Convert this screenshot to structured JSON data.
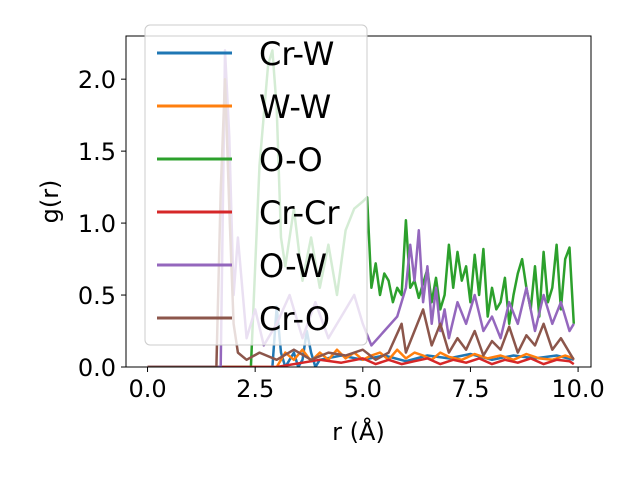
{
  "chart_data": {
    "type": "line",
    "xlabel": "r (Å)",
    "ylabel": "g(r)",
    "xlim": [
      -0.5,
      10.3
    ],
    "ylim": [
      0.0,
      2.3
    ],
    "xticks": [
      0.0,
      2.5,
      5.0,
      7.5,
      10.0
    ],
    "xtick_labels": [
      "0.0",
      "2.5",
      "5.0",
      "7.5",
      "10.0"
    ],
    "yticks": [
      0.0,
      0.5,
      1.0,
      1.5,
      2.0
    ],
    "ytick_labels": [
      "0.0",
      "0.5",
      "1.0",
      "1.5",
      "2.0"
    ],
    "grid": false,
    "legend_position": "upper-left",
    "series": [
      {
        "name": "Cr-W",
        "color": "#1f77b4",
        "x": [
          0.0,
          1.0,
          2.0,
          2.9,
          3.0,
          3.1,
          3.2,
          3.3,
          3.4,
          3.5,
          3.6,
          3.7,
          3.8,
          3.9,
          4.0,
          4.5,
          5.0,
          5.5,
          6.0,
          6.5,
          7.0,
          7.5,
          8.0,
          8.5,
          9.0,
          9.5,
          9.9
        ],
        "y": [
          0.0,
          0.0,
          0.0,
          0.0,
          0.42,
          0.1,
          0.0,
          0.05,
          0.1,
          0.0,
          0.05,
          0.25,
          0.1,
          0.0,
          0.05,
          0.08,
          0.05,
          0.08,
          0.04,
          0.08,
          0.06,
          0.09,
          0.05,
          0.08,
          0.06,
          0.08,
          0.05
        ]
      },
      {
        "name": "W-W",
        "color": "#ff7f0e",
        "x": [
          0.0,
          1.0,
          2.0,
          3.0,
          3.2,
          3.4,
          3.6,
          3.8,
          4.0,
          4.2,
          4.4,
          4.6,
          4.8,
          5.0,
          5.2,
          5.4,
          5.6,
          5.8,
          6.0,
          6.2,
          6.4,
          6.6,
          6.8,
          7.0,
          7.3,
          7.6,
          7.9,
          8.2,
          8.5,
          8.8,
          9.1,
          9.4,
          9.7,
          9.9
        ],
        "y": [
          0.0,
          0.0,
          0.0,
          0.0,
          0.1,
          0.05,
          0.12,
          0.04,
          0.1,
          0.05,
          0.12,
          0.06,
          0.1,
          0.05,
          0.08,
          0.1,
          0.05,
          0.12,
          0.06,
          0.1,
          0.08,
          0.05,
          0.1,
          0.07,
          0.05,
          0.09,
          0.06,
          0.08,
          0.05,
          0.09,
          0.06,
          0.05,
          0.08,
          0.06
        ]
      },
      {
        "name": "O-O",
        "color": "#2ca02c",
        "x": [
          0.0,
          1.0,
          2.0,
          2.4,
          2.6,
          2.8,
          2.9,
          3.0,
          3.1,
          3.2,
          3.4,
          3.6,
          3.8,
          4.0,
          4.2,
          4.4,
          4.6,
          4.8,
          5.0,
          5.1,
          5.2,
          5.3,
          5.4,
          5.5,
          5.6,
          5.7,
          5.8,
          5.9,
          6.0,
          6.1,
          6.2,
          6.3,
          6.4,
          6.5,
          6.6,
          6.7,
          6.8,
          6.9,
          7.0,
          7.1,
          7.2,
          7.3,
          7.4,
          7.5,
          7.6,
          7.7,
          7.8,
          7.9,
          8.0,
          8.1,
          8.2,
          8.3,
          8.4,
          8.5,
          8.6,
          8.7,
          8.8,
          8.9,
          9.0,
          9.1,
          9.2,
          9.3,
          9.4,
          9.5,
          9.6,
          9.7,
          9.8,
          9.9
        ],
        "y": [
          0.0,
          0.0,
          0.0,
          0.0,
          1.4,
          2.1,
          2.2,
          1.8,
          0.9,
          0.7,
          1.1,
          0.6,
          0.9,
          0.55,
          0.85,
          0.5,
          0.95,
          1.1,
          1.15,
          1.18,
          0.55,
          0.72,
          0.5,
          0.65,
          0.6,
          0.45,
          0.55,
          0.5,
          1.02,
          0.55,
          0.6,
          0.48,
          0.58,
          0.68,
          0.45,
          0.62,
          0.4,
          0.5,
          0.85,
          0.55,
          0.8,
          0.6,
          0.7,
          0.45,
          0.78,
          0.5,
          0.82,
          0.35,
          0.55,
          0.4,
          0.45,
          0.62,
          0.3,
          0.5,
          0.65,
          0.75,
          0.55,
          0.4,
          0.7,
          0.35,
          0.8,
          0.45,
          0.55,
          0.85,
          0.4,
          0.75,
          0.83,
          0.3
        ]
      },
      {
        "name": "Cr-Cr",
        "color": "#d62728",
        "x": [
          0.0,
          1.0,
          2.0,
          3.0,
          4.0,
          4.5,
          5.0,
          5.3,
          5.6,
          5.9,
          6.2,
          6.5,
          6.8,
          7.1,
          7.4,
          7.7,
          8.0,
          8.3,
          8.6,
          8.9,
          9.2,
          9.5,
          9.8,
          9.9
        ],
        "y": [
          0.0,
          0.0,
          0.0,
          0.0,
          0.05,
          0.03,
          0.06,
          0.02,
          0.05,
          0.02,
          0.04,
          0.06,
          0.02,
          0.05,
          0.03,
          0.06,
          0.02,
          0.05,
          0.03,
          0.06,
          0.02,
          0.05,
          0.04,
          0.02
        ]
      },
      {
        "name": "O-W",
        "color": "#9467bd",
        "x": [
          0.0,
          1.0,
          1.7,
          1.8,
          1.9,
          2.0,
          2.1,
          2.3,
          2.5,
          2.7,
          3.0,
          3.3,
          3.6,
          3.9,
          4.2,
          4.5,
          4.8,
          5.0,
          5.2,
          5.5,
          5.8,
          6.0,
          6.1,
          6.2,
          6.3,
          6.4,
          6.5,
          6.6,
          6.7,
          6.8,
          6.9,
          7.0,
          7.2,
          7.4,
          7.6,
          7.8,
          8.0,
          8.2,
          8.4,
          8.6,
          8.8,
          9.0,
          9.2,
          9.4,
          9.6,
          9.8,
          9.9
        ],
        "y": [
          0.0,
          0.0,
          0.0,
          2.2,
          1.6,
          0.5,
          0.9,
          0.2,
          0.4,
          0.15,
          0.3,
          0.5,
          0.2,
          0.45,
          0.2,
          0.35,
          0.5,
          0.3,
          0.15,
          0.25,
          0.35,
          0.55,
          0.85,
          0.6,
          0.95,
          0.45,
          0.7,
          0.3,
          0.55,
          0.25,
          0.4,
          0.2,
          0.45,
          0.3,
          0.5,
          0.25,
          0.35,
          0.2,
          0.45,
          0.3,
          0.55,
          0.25,
          0.5,
          0.3,
          0.45,
          0.25,
          0.3
        ]
      },
      {
        "name": "Cr-O",
        "color": "#8c564b",
        "x": [
          0.0,
          1.0,
          1.6,
          1.7,
          1.8,
          1.9,
          2.0,
          2.1,
          2.3,
          2.6,
          3.0,
          3.4,
          3.8,
          4.2,
          4.6,
          5.0,
          5.3,
          5.6,
          5.9,
          6.0,
          6.2,
          6.4,
          6.6,
          6.8,
          7.0,
          7.2,
          7.4,
          7.6,
          7.8,
          8.0,
          8.2,
          8.4,
          8.6,
          8.8,
          9.0,
          9.2,
          9.4,
          9.6,
          9.8,
          9.9
        ],
        "y": [
          0.0,
          0.0,
          0.0,
          1.22,
          2.0,
          1.1,
          0.3,
          0.1,
          0.05,
          0.1,
          0.05,
          0.12,
          0.05,
          0.1,
          0.08,
          0.12,
          0.05,
          0.1,
          0.3,
          0.1,
          0.25,
          0.4,
          0.15,
          0.3,
          0.1,
          0.2,
          0.12,
          0.25,
          0.08,
          0.18,
          0.12,
          0.28,
          0.1,
          0.22,
          0.15,
          0.3,
          0.12,
          0.2,
          0.1,
          0.05
        ]
      }
    ]
  }
}
